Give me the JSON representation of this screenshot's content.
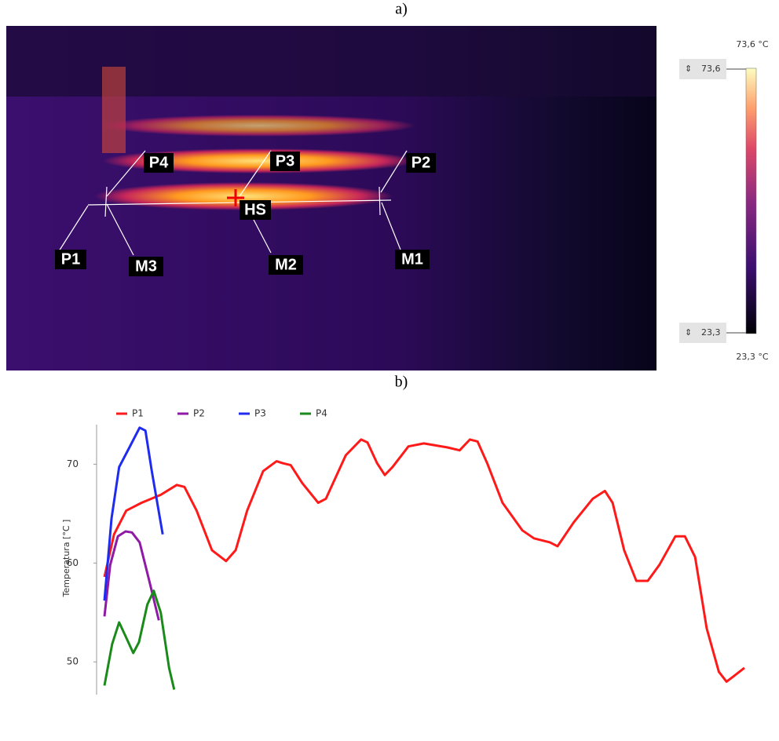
{
  "panel_a_label": "a)",
  "panel_b_label": "b)",
  "thermal": {
    "labels": {
      "p4": "P4",
      "p3": "P3",
      "p2": "P2",
      "p1": "P1",
      "m3": "M3",
      "m2": "M2",
      "m1": "M1",
      "hs": "HS"
    },
    "scale": {
      "max_label": "73,6 °C",
      "max": "73,6",
      "min": "23,3",
      "min_label": "23,3 °C"
    }
  },
  "chart_data": {
    "type": "line",
    "y_label": "Temperatura [°C ]",
    "ylim": [
      47,
      74
    ],
    "yticks": [
      50,
      60,
      70
    ],
    "xlim": [
      0,
      100
    ],
    "legend": "top-left",
    "series": [
      {
        "name": "P1",
        "color": "#ff1a1a",
        "x": [
          0,
          1.5,
          3.4,
          5.8,
          8.8,
          11.3,
          12.5,
          14.4,
          16.8,
          19.0,
          20.5,
          22.3,
          24.8,
          26.9,
          27.85,
          29.1,
          30.9,
          33.4,
          34.6,
          37.7,
          40.1,
          41.1,
          42.6,
          43.8,
          45.0,
          47.5,
          49.9,
          53.6,
          55.5,
          57.1,
          58.3,
          59.8,
          62.2,
          65.3,
          67.1,
          69.6,
          70.8,
          73.3,
          76.3,
          78.2,
          79.4,
          81.2,
          83.1,
          84.9,
          86.7,
          89.2,
          90.7,
          92.3,
          94.1,
          96.0,
          97.2,
          98.4,
          100
        ],
        "values": [
          58.6,
          62.9,
          65.3,
          66.1,
          66.9,
          67.9,
          67.7,
          65.3,
          61.3,
          60.2,
          61.3,
          65.3,
          69.3,
          70.3,
          70.1,
          69.9,
          68.1,
          66.1,
          66.5,
          70.9,
          72.5,
          72.2,
          70.1,
          68.9,
          69.7,
          71.8,
          72.1,
          71.7,
          71.4,
          72.5,
          72.3,
          70.1,
          66.1,
          63.3,
          62.5,
          62.1,
          61.7,
          64.1,
          66.5,
          67.3,
          66.1,
          61.3,
          58.2,
          58.2,
          59.8,
          62.7,
          62.7,
          60.6,
          53.4,
          49.0,
          48.0,
          48.6,
          49.4
        ]
      },
      {
        "name": "P2",
        "color": "#8e1aa6",
        "x": [
          0,
          0.9,
          2.1,
          3.3,
          4.3,
          5.5,
          7.0,
          8.5
        ],
        "values": [
          54.6,
          59.8,
          62.7,
          63.2,
          63.1,
          62.1,
          58.2,
          54.2
        ]
      },
      {
        "name": "P3",
        "color": "#1f2cf0",
        "x": [
          0,
          1.1,
          2.3,
          3.9,
          5.5,
          6.4,
          7.4,
          9.1
        ],
        "values": [
          56.2,
          64.5,
          69.7,
          71.7,
          73.7,
          73.4,
          69.3,
          62.9
        ]
      },
      {
        "name": "P4",
        "color": "#1a8a1a",
        "x": [
          0,
          1.2,
          2.3,
          3.3,
          4.5,
          5.4,
          6.7,
          7.7,
          8.8,
          10.1,
          10.9
        ],
        "values": [
          47.6,
          51.8,
          54.0,
          52.6,
          50.9,
          52.0,
          55.8,
          57.2,
          55.0,
          49.4,
          47.2
        ]
      }
    ]
  }
}
